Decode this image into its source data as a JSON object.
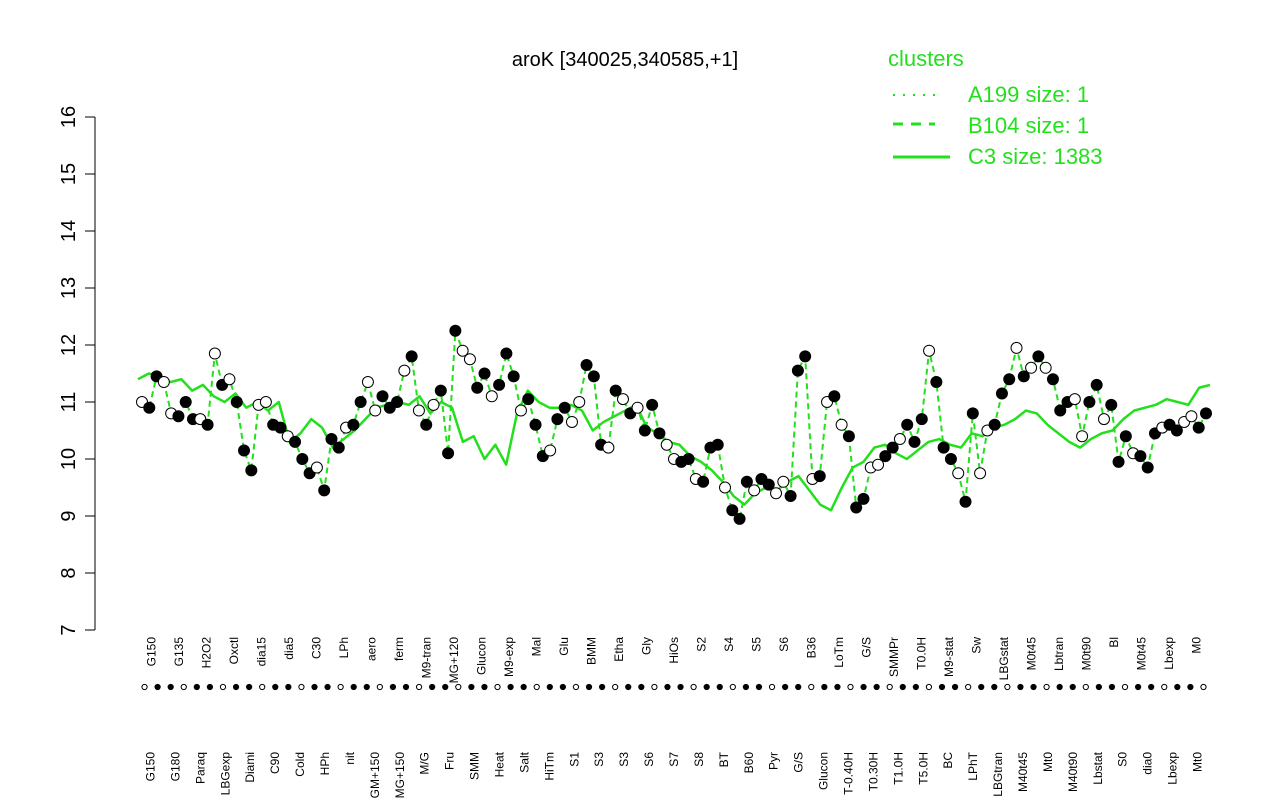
{
  "chart_data": {
    "type": "line",
    "title": "aroK [340025,340585,+1]",
    "xlabel": "",
    "ylabel": "",
    "ylim": [
      7,
      16
    ],
    "yticks": [
      7,
      8,
      9,
      10,
      11,
      12,
      13,
      14,
      15,
      16
    ],
    "grid": false,
    "legend": {
      "title": "clusters",
      "placement": "top-right",
      "entries": [
        {
          "label": "A199 size: 1",
          "style": "dotted"
        },
        {
          "label": "B104 size: 1",
          "style": "dashed"
        },
        {
          "label": "C3 size: 1383",
          "style": "solid"
        }
      ]
    },
    "x_labels_top": [
      "G150",
      "G135",
      "H2O2",
      "Oxctl",
      "dia15",
      "dia5",
      "C30",
      "LPh",
      "aero",
      "ferm",
      "M9-tran",
      "MG+120",
      "Glucon",
      "M9-exp",
      "Mal",
      "Glu",
      "BMM",
      "Etha",
      "Gly",
      "HiOs",
      "S2",
      "S4",
      "S5",
      "S6",
      "B36",
      "LoTm",
      "G/S",
      "SMMPr",
      "T0.0H",
      "M9-stat",
      "Sw",
      "LBGstat",
      "M0t45",
      "Lbtran",
      "M0t90",
      "Bl",
      "M0t45",
      "Lbexp",
      "M0"
    ],
    "x_labels_bottom": [
      "G150",
      "G180",
      "Paraq",
      "LBGexp",
      "Diami",
      "C90",
      "Cold",
      "HPh",
      "nit",
      "GM+150",
      "MG+150",
      "M/G",
      "Fru",
      "SMM",
      "Heat",
      "Salt",
      "HiTm",
      "S1",
      "S3",
      "S3",
      "S6",
      "S7",
      "S8",
      "BT",
      "B60",
      "Pyr",
      "G/S",
      "Glucon",
      "T-0.40H",
      "T0.30H",
      "T1.0H",
      "T5.0H",
      "BC",
      "LPhT",
      "LBGtran",
      "M40t45",
      "Mt0",
      "M40t90",
      "Lbstat",
      "S0",
      "dia0",
      "Lbexp",
      "Mt0"
    ],
    "series": [
      {
        "style": "solid",
        "color": "#22e01c",
        "values": [
          11.4,
          11.5,
          11.45,
          11.35,
          11.4,
          11.2,
          11.3,
          11.1,
          11.0,
          11.15,
          10.9,
          11.0,
          10.85,
          11.0,
          10.3,
          10.45,
          10.7,
          10.55,
          10.2,
          10.35,
          10.5,
          10.7,
          10.9,
          10.95,
          11.0,
          10.95,
          11.1,
          10.8,
          11.0,
          10.9,
          10.3,
          10.4,
          10.0,
          10.25,
          9.9,
          10.8,
          11.2,
          11.0,
          10.9,
          10.9,
          10.95,
          10.85,
          10.5,
          10.65,
          10.75,
          10.85,
          10.95,
          10.55,
          10.45,
          10.3,
          10.25,
          10.05,
          9.95,
          9.8,
          9.6,
          9.35,
          9.2,
          9.4,
          9.5,
          9.45,
          9.6,
          9.7,
          9.45,
          9.2,
          9.1,
          9.5,
          9.85,
          9.95,
          10.2,
          10.25,
          10.1,
          10.0,
          10.15,
          10.3,
          10.35,
          10.25,
          10.2,
          10.45,
          10.4,
          10.55,
          10.6,
          10.7,
          10.85,
          10.8,
          10.6,
          10.45,
          10.3,
          10.2,
          10.35,
          10.45,
          10.5,
          10.7,
          10.85,
          10.9,
          10.95,
          11.05,
          11.0,
          10.95,
          11.25,
          11.3
        ]
      }
    ],
    "points": [
      11.0,
      10.9,
      11.45,
      11.35,
      10.8,
      10.75,
      11.0,
      10.7,
      10.7,
      10.6,
      11.85,
      11.3,
      11.4,
      11.0,
      10.15,
      9.8,
      10.95,
      11.0,
      10.6,
      10.55,
      10.4,
      10.3,
      10.0,
      9.75,
      9.85,
      9.45,
      10.35,
      10.2,
      10.55,
      10.6,
      11.0,
      11.35,
      10.85,
      11.1,
      10.9,
      11.0,
      11.55,
      11.8,
      10.85,
      10.6,
      10.95,
      11.2,
      10.1,
      12.25,
      11.9,
      11.75,
      11.25,
      11.5,
      11.1,
      11.3,
      11.85,
      11.45,
      10.85,
      11.05,
      10.6,
      10.05,
      10.15,
      10.7,
      10.9,
      10.65,
      11.0,
      11.65,
      11.45,
      10.25,
      10.2,
      11.2,
      11.05,
      10.8,
      10.9,
      10.5,
      10.95,
      10.45,
      10.25,
      10.0,
      9.95,
      10.0,
      9.65,
      9.6,
      10.2,
      10.25,
      9.5,
      9.1,
      8.95,
      9.6,
      9.45,
      9.65,
      9.55,
      9.4,
      9.6,
      9.35,
      11.55,
      11.8,
      9.65,
      9.7,
      11.0,
      11.1,
      10.6,
      10.4,
      9.15,
      9.3,
      9.85,
      9.9,
      10.05,
      10.2,
      10.35,
      10.6,
      10.3,
      10.7,
      11.9,
      11.35,
      10.2,
      10.0,
      9.75,
      9.25,
      10.8,
      9.75,
      10.5,
      10.6,
      11.15,
      11.4,
      11.95,
      11.45,
      11.6,
      11.8,
      11.6,
      11.4,
      10.85,
      11.0,
      11.05,
      10.4,
      11.0,
      11.3,
      10.7,
      10.95,
      9.95,
      10.4,
      10.1,
      10.05,
      9.85,
      10.45,
      10.55,
      10.6,
      10.5,
      10.65,
      10.75,
      10.55,
      10.8
    ],
    "colors": {
      "line": "#22e01c",
      "legend_text": "#22e01c",
      "axis": "#000000",
      "point_fill_light": "#ffffff",
      "point_fill_dark": "#000000"
    }
  }
}
